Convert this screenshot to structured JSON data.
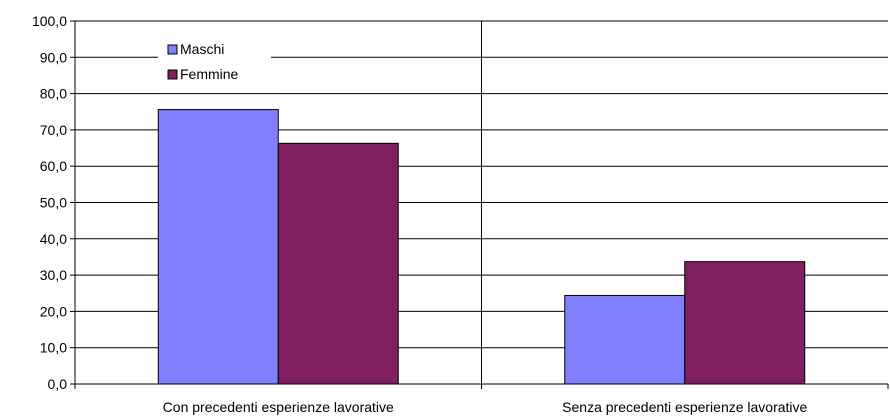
{
  "chart_data": {
    "type": "bar",
    "categories": [
      "Con precedenti esperienze lavorative",
      "Senza precedenti esperienze lavorative"
    ],
    "series": [
      {
        "name": "Maschi",
        "values": [
          75.6,
          24.4
        ],
        "color": "#8080ff"
      },
      {
        "name": "Femmine",
        "values": [
          66.3,
          33.7
        ],
        "color": "#7f1f5f"
      }
    ],
    "ylim": [
      0,
      100
    ],
    "yticks": [
      "0,0",
      "10,0",
      "20,0",
      "30,0",
      "40,0",
      "50,0",
      "60,0",
      "70,0",
      "80,0",
      "90,0",
      "100,0"
    ],
    "grid": true,
    "legend": "top-left",
    "title": "",
    "xlabel": "",
    "ylabel": ""
  }
}
